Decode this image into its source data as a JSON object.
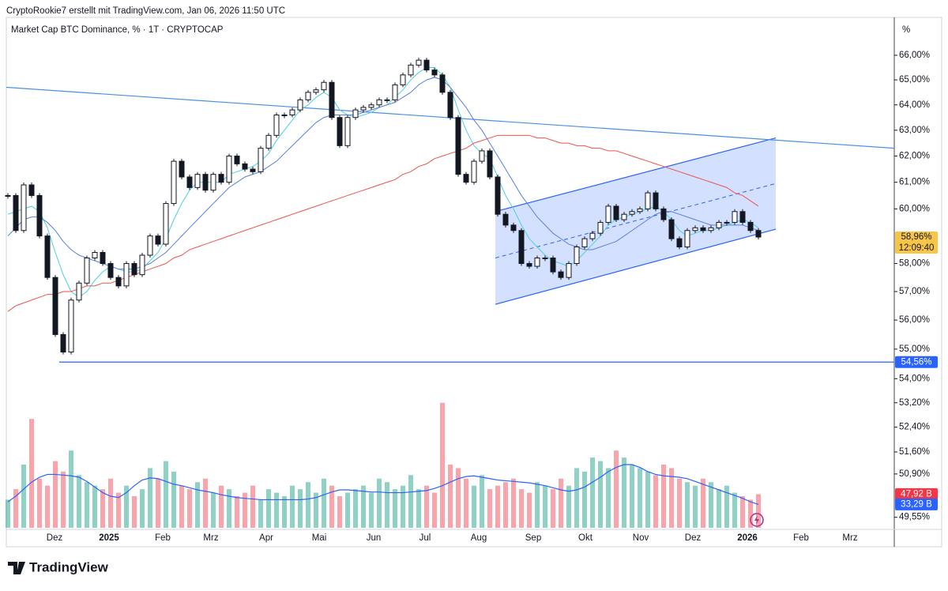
{
  "header": "CryptoRookie7 erstellt mit TradingView.com, Jan 06, 2026 11:50 UTC",
  "brand": "TradingView",
  "chart_data": {
    "type": "candlestick",
    "title": "Market Cap BTC Dominance, % · 1T · CRYPTOCAP",
    "axis_unit": "%",
    "log_scale": true,
    "ylim": [
      49.18,
      67.57
    ],
    "yticks": [
      {
        "value": 66,
        "label": "66,00%"
      },
      {
        "value": 65,
        "label": "65,00%"
      },
      {
        "value": 64,
        "label": "64,00%"
      },
      {
        "value": 63,
        "label": "63,00%"
      },
      {
        "value": 62,
        "label": "62,00%"
      },
      {
        "value": 61,
        "label": "61,00%"
      },
      {
        "value": 60,
        "label": "60,00%"
      },
      {
        "value": 58,
        "label": "58,00%"
      },
      {
        "value": 57,
        "label": "57,00%"
      },
      {
        "value": 56,
        "label": "56,00%"
      },
      {
        "value": 55,
        "label": "55,00%"
      },
      {
        "value": 54,
        "label": "54,00%"
      },
      {
        "value": 53.2,
        "label": "53,20%"
      },
      {
        "value": 52.4,
        "label": "52,40%"
      },
      {
        "value": 51.6,
        "label": "51,60%"
      },
      {
        "value": 50.9,
        "label": "50,90%"
      },
      {
        "value": 49.55,
        "label": "49,55%"
      }
    ],
    "xticks": [
      "Dez",
      "2025",
      "Feb",
      "Mrz",
      "Apr",
      "Mai",
      "Jun",
      "Jul",
      "Aug",
      "Sep",
      "Okt",
      "Nov",
      "Dez",
      "2026",
      "Feb",
      "Mrz"
    ],
    "close": [
      60.5,
      59.2,
      60.9,
      60.5,
      59.0,
      57.5,
      55.5,
      54.9,
      56.7,
      57.3,
      58.2,
      58.4,
      58.0,
      57.5,
      57.2,
      58.0,
      57.6,
      58.3,
      59.0,
      58.7,
      60.2,
      61.8,
      61.2,
      60.8,
      61.3,
      60.7,
      61.3,
      61.0,
      62.0,
      61.7,
      61.5,
      61.4,
      62.3,
      62.8,
      63.6,
      63.6,
      63.8,
      64.2,
      64.5,
      64.6,
      64.9,
      63.5,
      62.4,
      63.5,
      63.8,
      63.9,
      64.0,
      64.2,
      64.2,
      64.8,
      65.2,
      65.6,
      65.8,
      65.4,
      65.2,
      64.5,
      63.5,
      61.3,
      61.0,
      61.8,
      62.2,
      61.2,
      59.8,
      59.4,
      59.2,
      58.0,
      57.9,
      58.2,
      58.2,
      57.7,
      57.5,
      58.0,
      58.6,
      58.9,
      59.1,
      59.5,
      60.1,
      59.6,
      59.8,
      59.9,
      60.0,
      60.6,
      60.0,
      59.6,
      58.9,
      58.6,
      59.2,
      59.3,
      59.2,
      59.3,
      59.5,
      59.5,
      59.9,
      59.5,
      59.2,
      58.96
    ],
    "series": [
      {
        "color": "#4dd0e1",
        "values": [
          59.8,
          59.9,
          60.0,
          60.1,
          59.9,
          59.3,
          58.4,
          57.6,
          57.0,
          56.8,
          57.0,
          57.4,
          57.7,
          57.9,
          57.8,
          57.7,
          57.7,
          57.8,
          58.1,
          58.4,
          58.9,
          59.6,
          60.2,
          60.7,
          61.0,
          61.0,
          61.0,
          61.0,
          61.3,
          61.4,
          61.5,
          61.6,
          61.8,
          62.1,
          62.6,
          63.0,
          63.4,
          63.8,
          64.0,
          64.3,
          64.5,
          64.3,
          63.8,
          63.6,
          63.5,
          63.6,
          63.7,
          63.9,
          64.0,
          64.3,
          64.6,
          65.0,
          65.3,
          65.5,
          65.5,
          65.2,
          64.7,
          63.8,
          63.0,
          62.4,
          62.1,
          61.9,
          61.2,
          60.5,
          60.0,
          59.4,
          58.9,
          58.6,
          58.3,
          58.1,
          58.0,
          57.9,
          58.1,
          58.4,
          58.7,
          59.0,
          59.4,
          59.6,
          59.7,
          59.8,
          59.9,
          60.0,
          60.1,
          59.9,
          59.6,
          59.2,
          59.0,
          59.1,
          59.2,
          59.2,
          59.3,
          59.4,
          59.5,
          59.6,
          59.5,
          59.3
        ]
      },
      {
        "color": "#5b7fe0",
        "values": [
          59.0,
          59.3,
          59.6,
          59.7,
          59.7,
          59.5,
          59.2,
          58.8,
          58.5,
          58.3,
          58.2,
          58.1,
          58.0,
          57.9,
          57.8,
          57.8,
          57.8,
          57.9,
          58.0,
          58.2,
          58.4,
          58.7,
          59.0,
          59.3,
          59.6,
          59.9,
          60.2,
          60.5,
          60.8,
          61.0,
          61.2,
          61.3,
          61.4,
          61.6,
          61.8,
          62.1,
          62.4,
          62.7,
          63.0,
          63.3,
          63.5,
          63.6,
          63.6,
          63.6,
          63.6,
          63.7,
          63.8,
          63.9,
          64.0,
          64.1,
          64.3,
          64.5,
          64.8,
          65.0,
          65.1,
          65.0,
          64.7,
          64.3,
          63.9,
          63.4,
          63.0,
          62.5,
          62.0,
          61.5,
          61.0,
          60.5,
          60.1,
          59.7,
          59.4,
          59.1,
          58.9,
          58.7,
          58.6,
          58.5,
          58.5,
          58.6,
          58.7,
          58.8,
          59.0,
          59.2,
          59.4,
          59.6,
          59.8,
          59.9,
          59.9,
          59.8,
          59.7,
          59.6,
          59.5,
          59.4,
          59.4,
          59.4,
          59.4,
          59.4,
          59.3,
          59.2
        ]
      },
      {
        "color": "#ef5350",
        "values": [
          56.3,
          56.5,
          56.6,
          56.7,
          56.8,
          56.9,
          56.9,
          57.0,
          57.0,
          57.1,
          57.2,
          57.2,
          57.3,
          57.3,
          57.4,
          57.5,
          57.6,
          57.7,
          57.8,
          57.9,
          58.0,
          58.2,
          58.3,
          58.5,
          58.6,
          58.7,
          58.8,
          58.9,
          59.0,
          59.1,
          59.2,
          59.3,
          59.4,
          59.5,
          59.6,
          59.7,
          59.8,
          59.9,
          60.0,
          60.1,
          60.2,
          60.3,
          60.4,
          60.5,
          60.6,
          60.7,
          60.8,
          60.9,
          61.0,
          61.1,
          61.3,
          61.4,
          61.6,
          61.7,
          61.9,
          62.0,
          62.1,
          62.2,
          62.3,
          62.5,
          62.6,
          62.7,
          62.8,
          62.8,
          62.8,
          62.8,
          62.8,
          62.7,
          62.7,
          62.6,
          62.5,
          62.5,
          62.4,
          62.4,
          62.3,
          62.3,
          62.2,
          62.2,
          62.1,
          62.0,
          61.9,
          61.8,
          61.7,
          61.6,
          61.5,
          61.4,
          61.3,
          61.2,
          61.1,
          61.0,
          60.9,
          60.8,
          60.6,
          60.5,
          60.3,
          60.1
        ]
      }
    ],
    "volume": [
      40,
      55,
      90,
      155,
      70,
      60,
      95,
      80,
      110,
      75,
      65,
      60,
      55,
      70,
      50,
      60,
      45,
      55,
      85,
      70,
      95,
      80,
      60,
      55,
      65,
      70,
      50,
      60,
      55,
      45,
      50,
      60,
      40,
      55,
      50,
      45,
      60,
      55,
      65,
      50,
      70,
      60,
      45,
      50,
      55,
      60,
      50,
      70,
      65,
      55,
      60,
      75,
      55,
      60,
      50,
      178,
      90,
      85,
      70,
      60,
      75,
      55,
      60,
      65,
      70,
      55,
      50,
      65,
      60,
      55,
      70,
      60,
      85,
      80,
      100,
      95,
      85,
      110,
      100,
      90,
      85,
      80,
      75,
      90,
      85,
      70,
      65,
      60,
      70,
      65,
      55,
      60,
      50,
      45,
      40,
      47.92
    ],
    "volume_ma": {
      "color": "#2962ff",
      "values": [
        37,
        45,
        55,
        65,
        72,
        76,
        76,
        75,
        74,
        72,
        66,
        58,
        50,
        45,
        43,
        50,
        60,
        68,
        71,
        70,
        66,
        62,
        60,
        57,
        54,
        52,
        50,
        47,
        45,
        43,
        42,
        41,
        40,
        40,
        40,
        40,
        40,
        40,
        41,
        43,
        47,
        51,
        54,
        54,
        53,
        52,
        51,
        51,
        50,
        50,
        50,
        51,
        52,
        53,
        56,
        60,
        65,
        70,
        73,
        74,
        72,
        70,
        68,
        67,
        66,
        65,
        64,
        62,
        60,
        57,
        54,
        52,
        54,
        58,
        65,
        72,
        80,
        86,
        90,
        90,
        86,
        80,
        76,
        74,
        73,
        72,
        70,
        66,
        62,
        58,
        54,
        50,
        46,
        42,
        37,
        33.29
      ]
    },
    "vlim": [
      0,
      180
    ],
    "price_label": {
      "value": 58.96,
      "label": "58,96%",
      "countdown": "12:09:40"
    },
    "volume_label": {
      "value": 47.92,
      "label": "47,92 B"
    },
    "volume_ma_label": {
      "value": 33.29,
      "label": "33,29 B"
    },
    "drawings": {
      "trendline": [
        64.7,
        62.3
      ],
      "channel_upper": [
        59.9,
        62.7
      ],
      "channel_lower": [
        56.55,
        59.25
      ],
      "support": {
        "value": 54.56,
        "label": "54,56%"
      }
    }
  }
}
